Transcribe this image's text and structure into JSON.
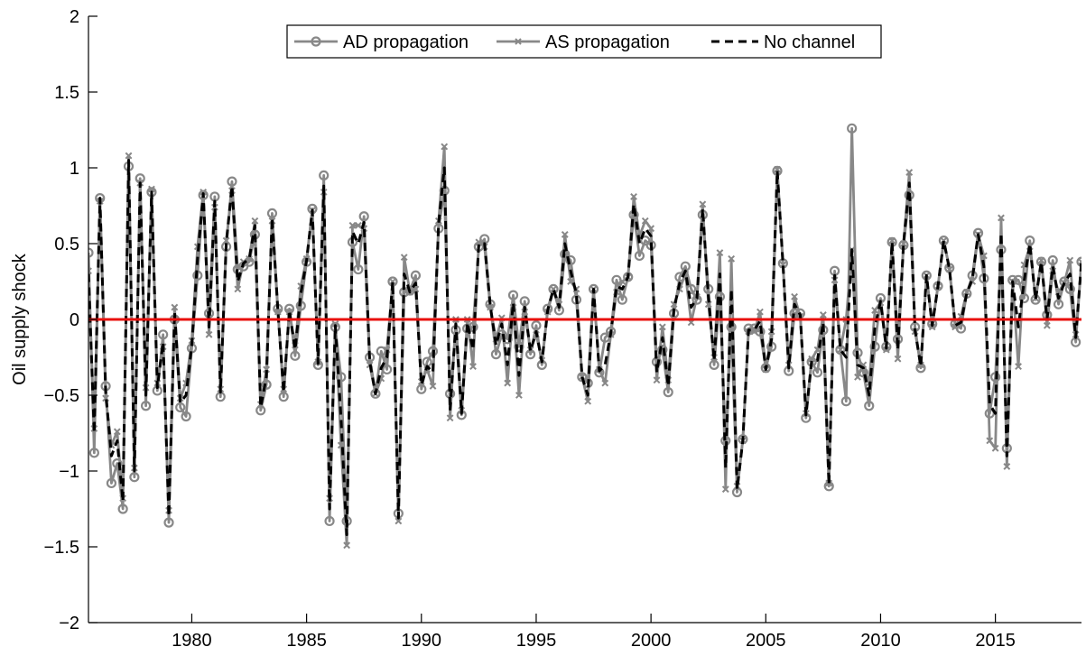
{
  "chart_data": {
    "type": "line",
    "title": "",
    "xlabel": "",
    "ylabel": "Oil supply shock",
    "xlim": [
      1975.5,
      2018.75
    ],
    "ylim": [
      -2,
      2
    ],
    "x_ticks": [
      1980,
      1985,
      1990,
      1995,
      2000,
      2005,
      2010,
      2015
    ],
    "x_tick_labels": [
      "1980",
      "1985",
      "1990",
      "1995",
      "2000",
      "2005",
      "2010",
      "2015"
    ],
    "y_ticks": [
      -2,
      -1.5,
      -1,
      -0.5,
      0,
      0.5,
      1,
      1.5,
      2
    ],
    "y_tick_labels": [
      "−2",
      "−1.5",
      "−1",
      "−0.5",
      "0",
      "0.5",
      "1",
      "1.5",
      "2"
    ],
    "legend_position": "top-center",
    "grid": false,
    "x_start": 1975.5,
    "x_step": 0.25,
    "series": [
      {
        "name": "AD propagation",
        "color": "#888888",
        "style": "solid-circle",
        "values": [
          0.44,
          -0.88,
          0.8,
          -0.44,
          -1.08,
          -0.95,
          -1.25,
          1.01,
          -1.04,
          0.93,
          -0.57,
          0.84,
          -0.47,
          -0.1,
          -1.34,
          0.0,
          -0.58,
          -0.64,
          -0.19,
          0.29,
          0.82,
          0.04,
          0.81,
          -0.51,
          0.48,
          0.91,
          0.33,
          0.35,
          0.38,
          0.56,
          -0.6,
          -0.43,
          0.7,
          0.07,
          -0.51,
          0.07,
          -0.24,
          0.09,
          0.38,
          0.73,
          -0.3,
          0.95,
          -1.33,
          -0.05,
          -0.38,
          -1.33,
          0.51,
          0.33,
          0.68,
          -0.25,
          -0.49,
          -0.21,
          -0.33,
          0.25,
          -1.28,
          0.18,
          0.19,
          0.29,
          -0.46,
          -0.28,
          -0.21,
          0.6,
          0.85,
          -0.49,
          -0.07,
          -0.63,
          -0.06,
          -0.05,
          0.48,
          0.53,
          0.1,
          -0.23,
          -0.1,
          -0.13,
          0.16,
          -0.18,
          0.12,
          -0.23,
          -0.04,
          -0.3,
          0.07,
          0.2,
          0.06,
          0.43,
          0.39,
          0.13,
          -0.38,
          -0.42,
          0.2,
          -0.35,
          -0.12,
          -0.08,
          0.26,
          0.13,
          0.28,
          0.69,
          0.42,
          0.52,
          0.49,
          -0.28,
          -0.2,
          -0.48,
          0.04,
          0.28,
          0.35,
          0.2,
          0.13,
          0.69,
          0.2,
          -0.3,
          0.15,
          -0.8,
          -0.05,
          -1.14,
          -0.79,
          -0.06,
          -0.06,
          -0.08,
          -0.32,
          -0.18,
          0.98,
          0.37,
          -0.34,
          0.04,
          0.04,
          -0.65,
          -0.28,
          -0.35,
          -0.07,
          -1.1,
          0.32,
          -0.2,
          -0.54,
          1.26,
          -0.22,
          -0.35,
          -0.57,
          -0.18,
          0.14,
          -0.18,
          0.51,
          -0.13,
          0.49,
          0.82,
          -0.05,
          -0.32,
          0.29,
          -0.03,
          0.22,
          0.52,
          0.34,
          -0.03,
          -0.06,
          0.17,
          0.29,
          0.57,
          0.27,
          -0.62,
          -0.38,
          0.46,
          -0.85,
          0.26,
          0.26,
          0.14,
          0.52,
          0.13,
          0.38,
          0.03,
          0.39,
          0.1,
          0.25,
          0.2,
          -0.15,
          0.38
        ]
      },
      {
        "name": "AS propagation",
        "color": "#888888",
        "style": "solid-cross",
        "values": [
          0.32,
          -0.72,
          0.78,
          -0.52,
          -0.83,
          -0.74,
          -1.18,
          1.08,
          -0.98,
          0.9,
          -0.45,
          0.86,
          -0.42,
          -0.18,
          -1.26,
          0.08,
          -0.52,
          -0.42,
          -0.14,
          0.48,
          0.84,
          -0.1,
          0.74,
          -0.46,
          0.52,
          0.85,
          0.2,
          0.38,
          0.4,
          0.65,
          -0.56,
          -0.33,
          0.65,
          0.05,
          -0.46,
          0.05,
          -0.17,
          0.22,
          0.4,
          0.72,
          -0.28,
          0.84,
          -1.18,
          -0.03,
          -0.83,
          -1.49,
          0.62,
          0.62,
          0.6,
          -0.3,
          -0.49,
          -0.39,
          -0.2,
          0.25,
          -1.33,
          0.41,
          0.18,
          0.2,
          -0.41,
          -0.33,
          -0.44,
          0.65,
          1.14,
          -0.65,
          0.0,
          -0.6,
          0.0,
          -0.31,
          0.51,
          0.48,
          0.08,
          -0.13,
          0.01,
          -0.42,
          0.08,
          -0.5,
          0.05,
          -0.2,
          -0.1,
          -0.27,
          0.05,
          0.2,
          0.1,
          0.56,
          0.25,
          0.2,
          -0.38,
          -0.54,
          0.2,
          -0.33,
          -0.42,
          -0.1,
          0.18,
          0.25,
          0.28,
          0.81,
          0.55,
          0.65,
          0.6,
          -0.4,
          -0.05,
          -0.4,
          0.1,
          0.2,
          0.3,
          -0.02,
          0.15,
          0.76,
          0.1,
          -0.25,
          0.44,
          -1.12,
          0.4,
          -1.1,
          -0.8,
          -0.08,
          -0.08,
          0.05,
          -0.33,
          -0.08,
          0.99,
          0.36,
          -0.3,
          0.15,
          0.02,
          -0.62,
          -0.26,
          -0.2,
          0.03,
          -1.08,
          0.26,
          -0.2,
          0.0,
          0.46,
          -0.38,
          -0.3,
          -0.42,
          0.06,
          0.11,
          -0.2,
          0.52,
          -0.26,
          0.5,
          0.97,
          -0.08,
          -0.3,
          0.29,
          -0.05,
          0.22,
          0.52,
          0.33,
          -0.05,
          0.02,
          0.18,
          0.25,
          0.56,
          0.42,
          -0.8,
          -0.85,
          0.67,
          -0.97,
          0.25,
          -0.31,
          0.36,
          0.48,
          0.14,
          0.39,
          -0.04,
          0.32,
          0.18,
          0.24,
          0.39,
          -0.1,
          0.38
        ]
      },
      {
        "name": "No channel",
        "color": "#000000",
        "style": "dashed",
        "values": [
          0.3,
          -0.75,
          0.8,
          -0.48,
          -0.9,
          -0.8,
          -1.2,
          1.05,
          -1.0,
          0.9,
          -0.5,
          0.84,
          -0.45,
          -0.15,
          -1.3,
          0.05,
          -0.55,
          -0.5,
          -0.17,
          0.4,
          0.83,
          -0.05,
          0.78,
          -0.48,
          0.5,
          0.88,
          0.25,
          0.37,
          0.4,
          0.62,
          -0.58,
          -0.38,
          0.67,
          0.06,
          -0.48,
          0.06,
          -0.2,
          0.17,
          0.39,
          0.72,
          -0.29,
          0.88,
          -1.25,
          -0.04,
          -0.65,
          -1.42,
          0.58,
          0.5,
          0.64,
          -0.28,
          -0.49,
          -0.32,
          -0.25,
          0.25,
          -1.31,
          0.3,
          0.18,
          0.24,
          -0.43,
          -0.31,
          -0.35,
          0.63,
          1.0,
          -0.6,
          -0.03,
          -0.62,
          -0.02,
          -0.2,
          0.5,
          0.5,
          0.09,
          -0.17,
          -0.03,
          -0.3,
          0.11,
          -0.37,
          0.08,
          -0.21,
          -0.08,
          -0.28,
          0.06,
          0.2,
          0.08,
          0.5,
          0.32,
          0.17,
          -0.38,
          -0.5,
          0.2,
          -0.34,
          -0.3,
          -0.09,
          0.22,
          0.2,
          0.28,
          0.76,
          0.5,
          0.6,
          0.55,
          -0.35,
          -0.12,
          -0.44,
          0.07,
          0.24,
          0.32,
          0.08,
          0.14,
          0.73,
          0.15,
          -0.27,
          0.3,
          -0.98,
          0.2,
          -1.12,
          -0.8,
          -0.07,
          -0.07,
          -0.01,
          -0.33,
          -0.13,
          0.98,
          0.36,
          -0.32,
          0.1,
          0.03,
          -0.63,
          -0.27,
          -0.27,
          -0.02,
          -1.09,
          0.29,
          -0.2,
          -0.25,
          0.46,
          -0.3,
          -0.32,
          -0.5,
          -0.05,
          0.12,
          -0.19,
          0.51,
          -0.2,
          0.5,
          0.9,
          -0.07,
          -0.31,
          0.29,
          -0.04,
          0.22,
          0.52,
          0.33,
          -0.04,
          -0.02,
          0.17,
          0.27,
          0.56,
          0.35,
          -0.56,
          -0.62,
          0.57,
          -0.9,
          0.25,
          -0.05,
          0.25,
          0.5,
          0.13,
          0.38,
          0.0,
          0.35,
          0.14,
          0.24,
          0.3,
          -0.12,
          0.38
        ]
      },
      {
        "name": "",
        "color": "#e8100c",
        "style": "zero-line",
        "values": [
          0,
          0
        ]
      }
    ]
  }
}
